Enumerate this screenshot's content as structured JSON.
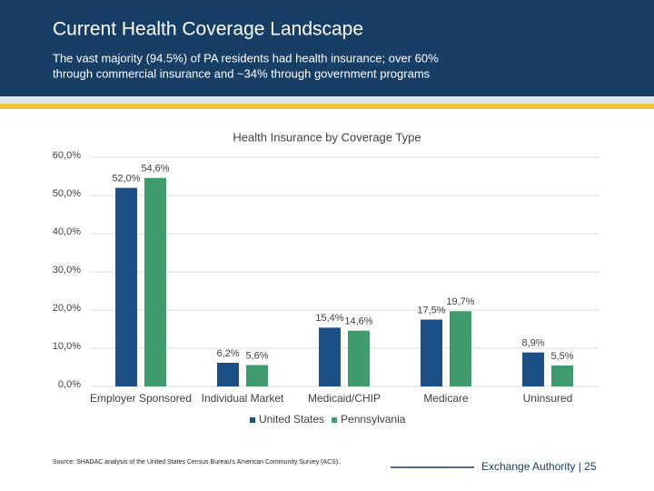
{
  "header": {
    "title": "Current Health Coverage Landscape",
    "subtitle": [
      "The vast majority (94.5%) of PA residents had health insurance; over 60%",
      "through commercial insurance and ~34% through government programs"
    ]
  },
  "chart_data": {
    "type": "bar",
    "title": "Health Insurance by Coverage Type",
    "categories": [
      "Employer Sponsored",
      "Individual Market",
      "Medicaid/CHIP",
      "Medicare",
      "Uninsured"
    ],
    "series": [
      {
        "name": "United States",
        "color": "#1c4f86",
        "values": [
          52.0,
          6.2,
          15.4,
          17.5,
          8.9
        ],
        "value_labels": [
          "52,0%",
          "6,2%",
          "15,4%",
          "17,5%",
          "8,9%"
        ]
      },
      {
        "name": "Pennsylvania",
        "color": "#3f9a6c",
        "values": [
          54.6,
          5.6,
          14.6,
          19.7,
          5.5
        ],
        "value_labels": [
          "54,6%",
          "5,6%",
          "14,6%",
          "19,7%",
          "5,5%"
        ]
      }
    ],
    "ylim": [
      0,
      60
    ],
    "yticks": [
      {
        "value": 0,
        "label": "0,0%"
      },
      {
        "value": 10,
        "label": "10,0%"
      },
      {
        "value": 20,
        "label": "20,0%"
      },
      {
        "value": 30,
        "label": "30,0%"
      },
      {
        "value": 40,
        "label": "40,0%"
      },
      {
        "value": 50,
        "label": "50,0%"
      },
      {
        "value": 60,
        "label": "60,0%"
      }
    ],
    "grid": true,
    "legend": "bottom"
  },
  "footer": {
    "source": "Source: SHADAC analysis of the United States Census Bureau's American Community Survey (ACS).",
    "page": "Exchange Authority  |  25"
  }
}
